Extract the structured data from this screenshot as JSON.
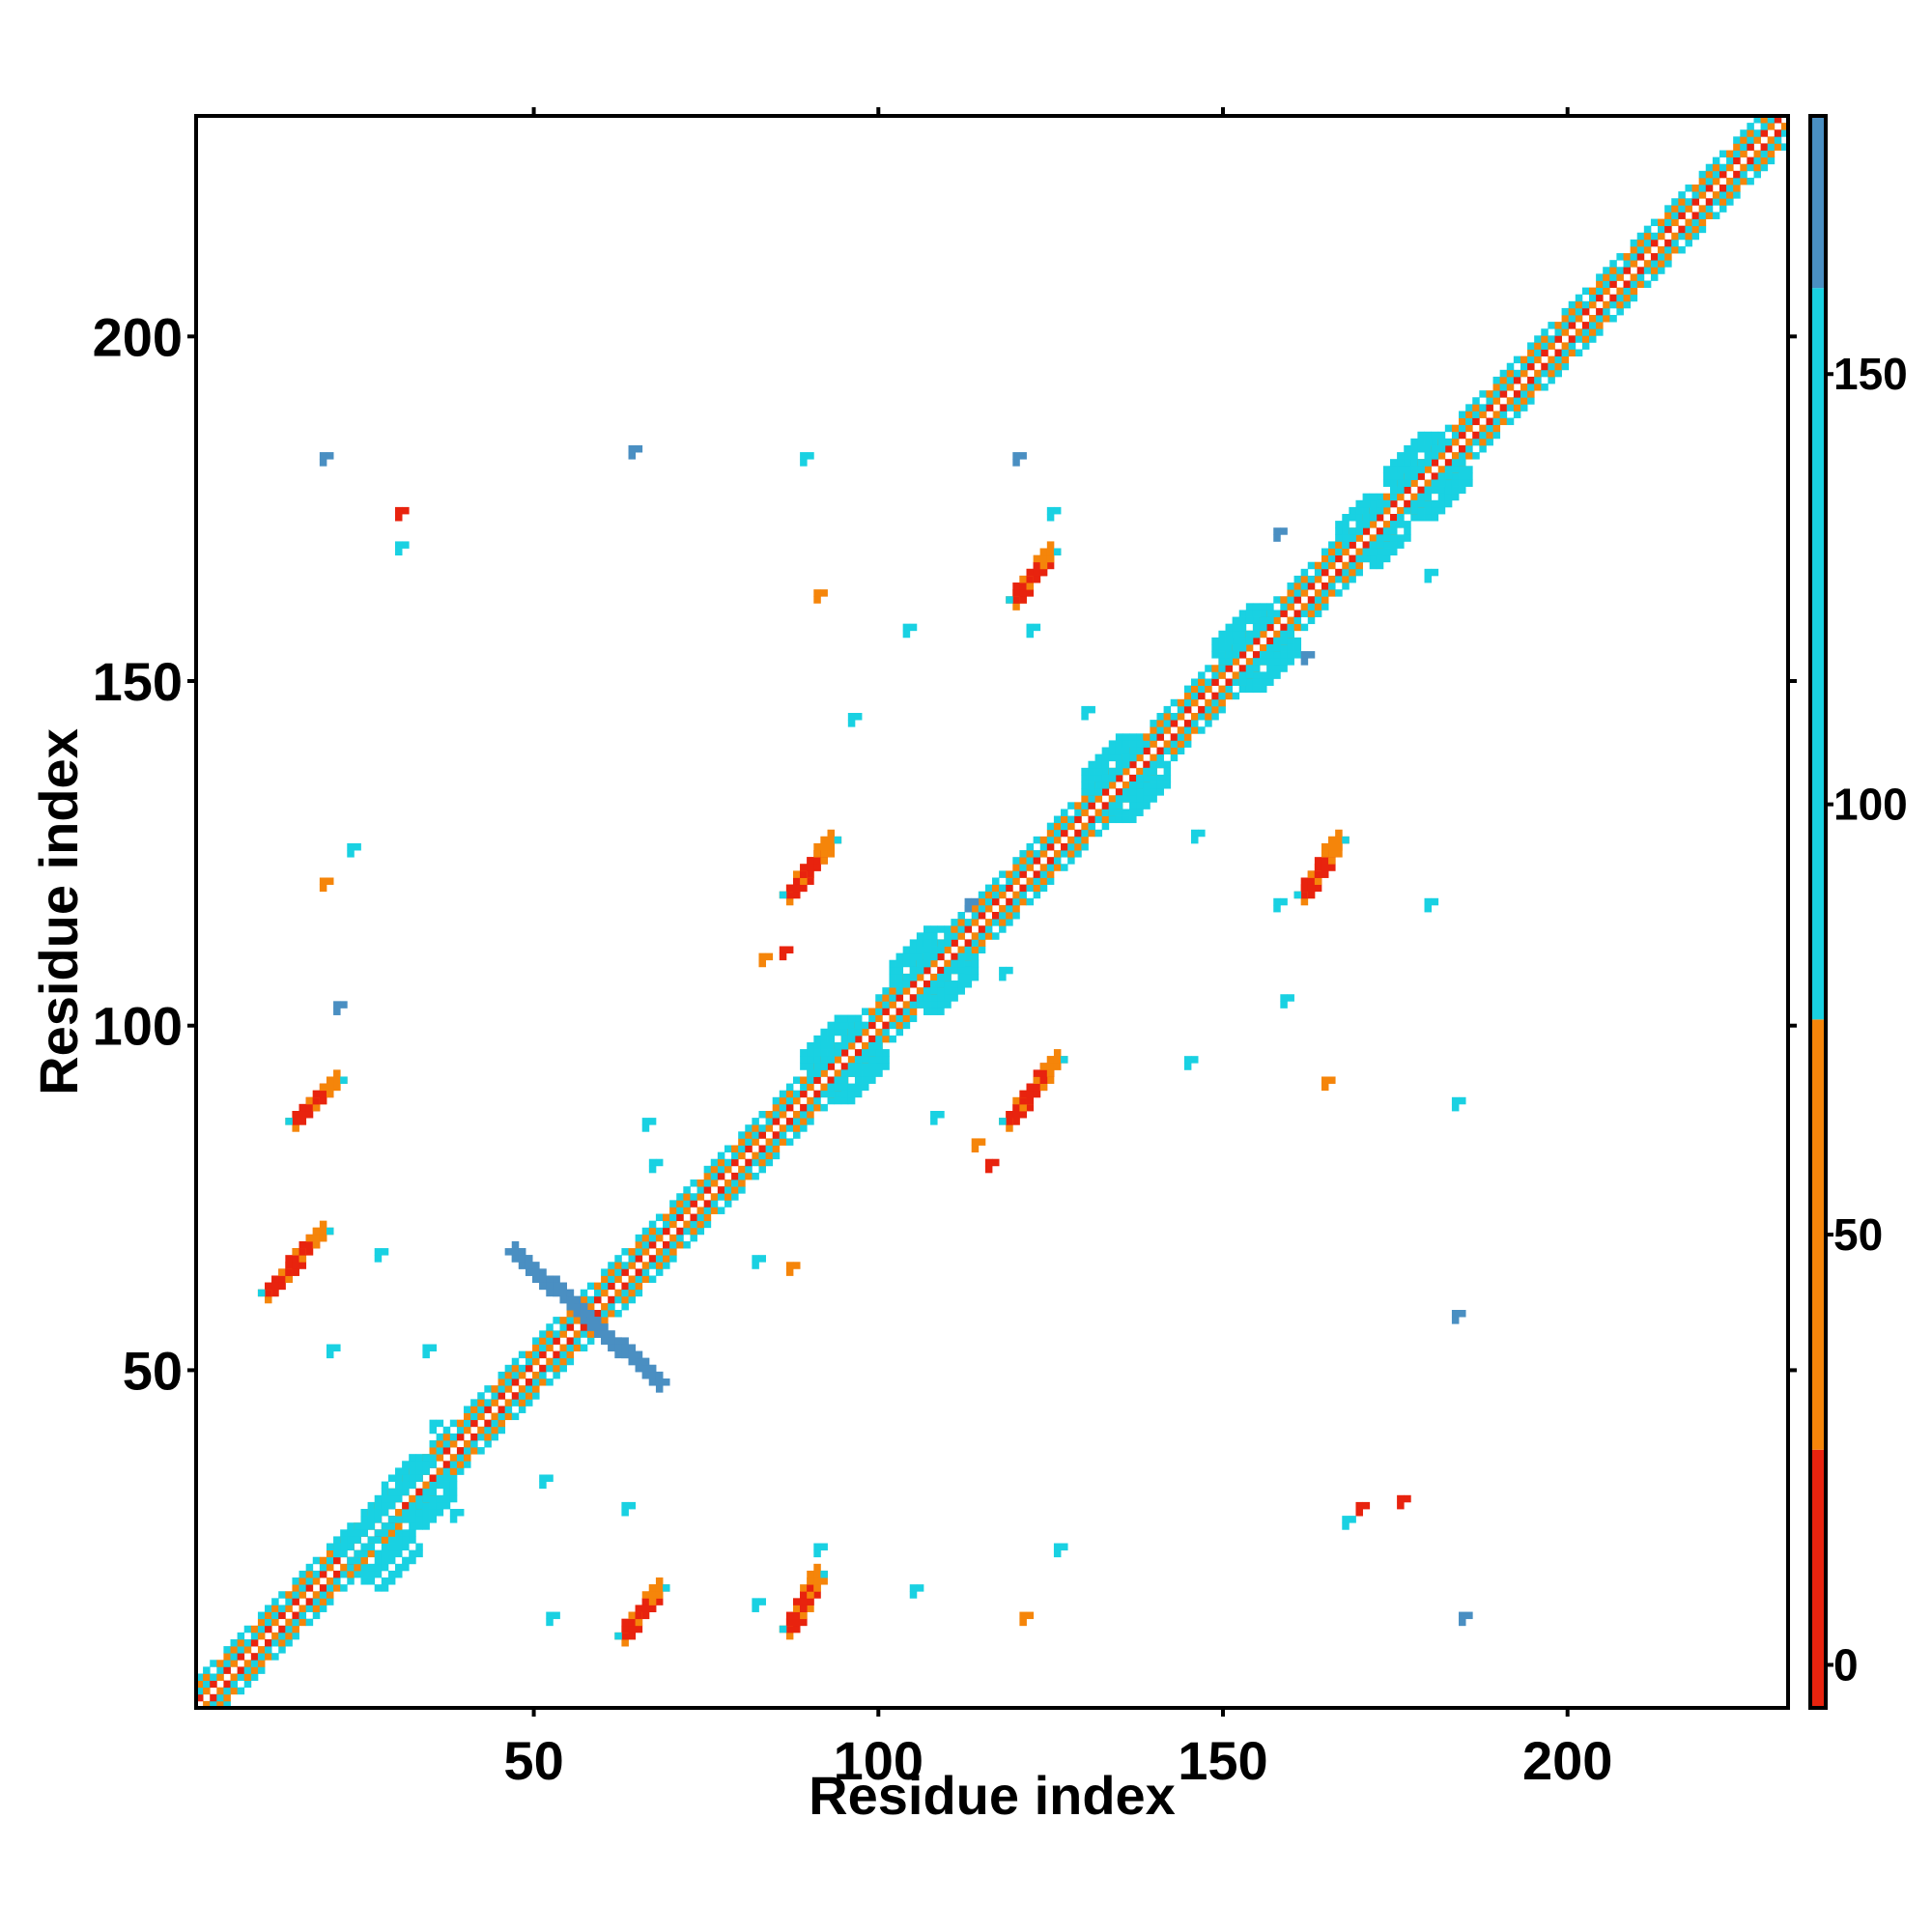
{
  "chart_data": {
    "type": "heatmap",
    "title": "",
    "xlabel": "Residue index",
    "ylabel": "Residue index",
    "xlim": [
      1,
      232
    ],
    "ylim": [
      1,
      232
    ],
    "xticks": [
      50,
      100,
      150,
      200
    ],
    "yticks": [
      50,
      100,
      150,
      200
    ],
    "colorbar": {
      "range": [
        -5,
        180
      ],
      "ticks": [
        0,
        50,
        100,
        150
      ],
      "bands": [
        {
          "from": -5,
          "to": 25,
          "color": "#e8230e"
        },
        {
          "from": 25,
          "to": 75,
          "color": "#f5850a"
        },
        {
          "from": 75,
          "to": 160,
          "color": "#19d1e2"
        },
        {
          "from": 160,
          "to": 180,
          "color": "#4a8fc2"
        }
      ]
    },
    "diagonal": {
      "from": 1,
      "to": 232
    },
    "features": [
      {
        "kind": "band",
        "from": [
          63,
          11
        ],
        "to": [
          68,
          18
        ],
        "color": "#e8230e",
        "width": 3
      },
      {
        "kind": "band",
        "from": [
          87,
          12
        ],
        "to": [
          91,
          20
        ],
        "color": "#e8230e",
        "width": 3
      },
      {
        "kind": "band",
        "from": [
          11,
          61
        ],
        "to": [
          19,
          70
        ],
        "color": "#e8230e",
        "width": 3
      },
      {
        "kind": "band",
        "from": [
          15,
          86
        ],
        "to": [
          21,
          92
        ],
        "color": "#e8230e",
        "width": 3
      },
      {
        "kind": "band",
        "from": [
          87,
          119
        ],
        "to": [
          93,
          127
        ],
        "color": "#e8230e",
        "width": 3
      },
      {
        "kind": "band",
        "from": [
          119,
          86
        ],
        "to": [
          126,
          95
        ],
        "color": "#e8230e",
        "width": 3
      },
      {
        "kind": "band",
        "from": [
          120,
          162
        ],
        "to": [
          125,
          169
        ],
        "color": "#e8230e",
        "width": 3
      },
      {
        "kind": "band",
        "from": [
          162,
          119
        ],
        "to": [
          167,
          127
        ],
        "color": "#e8230e",
        "width": 3
      },
      {
        "kind": "band",
        "from": [
          47,
          67
        ],
        "to": [
          68,
          48
        ],
        "color": "#4a8fc2",
        "width": 3
      },
      {
        "kind": "blob",
        "at": [
          27,
          24
        ],
        "color": "#19d1e2",
        "size": 6
      },
      {
        "kind": "blob",
        "at": [
          33,
          32
        ],
        "color": "#19d1e2",
        "size": 5
      },
      {
        "kind": "blob",
        "at": [
          95,
          95
        ],
        "color": "#19d1e2",
        "size": 6
      },
      {
        "kind": "blob",
        "at": [
          108,
          108
        ],
        "color": "#19d1e2",
        "size": 6
      },
      {
        "kind": "blob",
        "at": [
          136,
          136
        ],
        "color": "#19d1e2",
        "size": 6
      },
      {
        "kind": "blob",
        "at": [
          155,
          155
        ],
        "color": "#19d1e2",
        "size": 6
      },
      {
        "kind": "blob",
        "at": [
          172,
          172
        ],
        "color": "#19d1e2",
        "size": 5
      },
      {
        "kind": "blob",
        "at": [
          180,
          180
        ],
        "color": "#19d1e2",
        "size": 6
      },
      {
        "kind": "dots",
        "at": [
          35,
          42
        ],
        "color": "#19d1e2"
      },
      {
        "kind": "dots",
        "at": [
          38,
          29
        ],
        "color": "#19d1e2"
      },
      {
        "kind": "dots",
        "at": [
          20,
          53
        ],
        "color": "#19d1e2"
      },
      {
        "kind": "dots",
        "at": [
          19,
          183
        ],
        "color": "#4a8fc2"
      },
      {
        "kind": "dots",
        "at": [
          30,
          170
        ],
        "color": "#19d1e2"
      },
      {
        "kind": "dots",
        "at": [
          30,
          175
        ],
        "color": "#e8230e"
      },
      {
        "kind": "dots",
        "at": [
          19,
          121
        ],
        "color": "#f5850a"
      },
      {
        "kind": "dots",
        "at": [
          23,
          126
        ],
        "color": "#19d1e2"
      },
      {
        "kind": "dots",
        "at": [
          21,
          103
        ],
        "color": "#4a8fc2"
      },
      {
        "kind": "dots",
        "at": [
          27,
          67
        ],
        "color": "#19d1e2"
      },
      {
        "kind": "dots",
        "at": [
          34,
          53
        ],
        "color": "#19d1e2"
      },
      {
        "kind": "dots",
        "at": [
          51,
          34
        ],
        "color": "#19d1e2"
      },
      {
        "kind": "dots",
        "at": [
          52,
          14
        ],
        "color": "#19d1e2"
      },
      {
        "kind": "dots",
        "at": [
          63,
          30
        ],
        "color": "#19d1e2"
      },
      {
        "kind": "dots",
        "at": [
          66,
          86
        ],
        "color": "#19d1e2"
      },
      {
        "kind": "dots",
        "at": [
          67,
          80
        ],
        "color": "#19d1e2"
      },
      {
        "kind": "dots",
        "at": [
          64,
          184
        ],
        "color": "#4a8fc2"
      },
      {
        "kind": "dots",
        "at": [
          82,
          66
        ],
        "color": "#19d1e2"
      },
      {
        "kind": "dots",
        "at": [
          87,
          65
        ],
        "color": "#f5850a"
      },
      {
        "kind": "dots",
        "at": [
          83,
          110
        ],
        "color": "#f5850a"
      },
      {
        "kind": "dots",
        "at": [
          86,
          111
        ],
        "color": "#e8230e"
      },
      {
        "kind": "dots",
        "at": [
          82,
          16
        ],
        "color": "#19d1e2"
      },
      {
        "kind": "dots",
        "at": [
          91,
          24
        ],
        "color": "#19d1e2"
      },
      {
        "kind": "dots",
        "at": [
          89,
          183
        ],
        "color": "#19d1e2"
      },
      {
        "kind": "dots",
        "at": [
          91,
          163
        ],
        "color": "#f5850a"
      },
      {
        "kind": "dots",
        "at": [
          96,
          145
        ],
        "color": "#19d1e2"
      },
      {
        "kind": "dots",
        "at": [
          104,
          158
        ],
        "color": "#19d1e2"
      },
      {
        "kind": "dots",
        "at": [
          105,
          18
        ],
        "color": "#19d1e2"
      },
      {
        "kind": "dots",
        "at": [
          108,
          87
        ],
        "color": "#19d1e2"
      },
      {
        "kind": "dots",
        "at": [
          114,
          83
        ],
        "color": "#f5850a"
      },
      {
        "kind": "dots",
        "at": [
          116,
          80
        ],
        "color": "#e8230e"
      },
      {
        "kind": "dots",
        "at": [
          113,
          118
        ],
        "color": "#4a8fc2"
      },
      {
        "kind": "dots",
        "at": [
          118,
          108
        ],
        "color": "#19d1e2"
      },
      {
        "kind": "dots",
        "at": [
          120,
          183
        ],
        "color": "#4a8fc2"
      },
      {
        "kind": "dots",
        "at": [
          121,
          14
        ],
        "color": "#f5850a"
      },
      {
        "kind": "dots",
        "at": [
          126,
          24
        ],
        "color": "#19d1e2"
      },
      {
        "kind": "dots",
        "at": [
          122,
          158
        ],
        "color": "#19d1e2"
      },
      {
        "kind": "dots",
        "at": [
          125,
          175
        ],
        "color": "#19d1e2"
      },
      {
        "kind": "dots",
        "at": [
          130,
          146
        ],
        "color": "#19d1e2"
      },
      {
        "kind": "dots",
        "at": [
          145,
          95
        ],
        "color": "#19d1e2"
      },
      {
        "kind": "dots",
        "at": [
          146,
          128
        ],
        "color": "#19d1e2"
      },
      {
        "kind": "dots",
        "at": [
          158,
          172
        ],
        "color": "#4a8fc2"
      },
      {
        "kind": "dots",
        "at": [
          162,
          154
        ],
        "color": "#4a8fc2"
      },
      {
        "kind": "dots",
        "at": [
          158,
          118
        ],
        "color": "#19d1e2"
      },
      {
        "kind": "dots",
        "at": [
          159,
          104
        ],
        "color": "#19d1e2"
      },
      {
        "kind": "dots",
        "at": [
          165,
          92
        ],
        "color": "#f5850a"
      },
      {
        "kind": "dots",
        "at": [
          170,
          30
        ],
        "color": "#e8230e"
      },
      {
        "kind": "dots",
        "at": [
          168,
          28
        ],
        "color": "#19d1e2"
      },
      {
        "kind": "dots",
        "at": [
          176,
          31
        ],
        "color": "#e8230e"
      },
      {
        "kind": "dots",
        "at": [
          180,
          118
        ],
        "color": "#19d1e2"
      },
      {
        "kind": "dots",
        "at": [
          184,
          89
        ],
        "color": "#19d1e2"
      },
      {
        "kind": "dots",
        "at": [
          184,
          58
        ],
        "color": "#4a8fc2"
      },
      {
        "kind": "dots",
        "at": [
          185,
          14
        ],
        "color": "#4a8fc2"
      },
      {
        "kind": "dots",
        "at": [
          180,
          166
        ],
        "color": "#19d1e2"
      }
    ]
  }
}
